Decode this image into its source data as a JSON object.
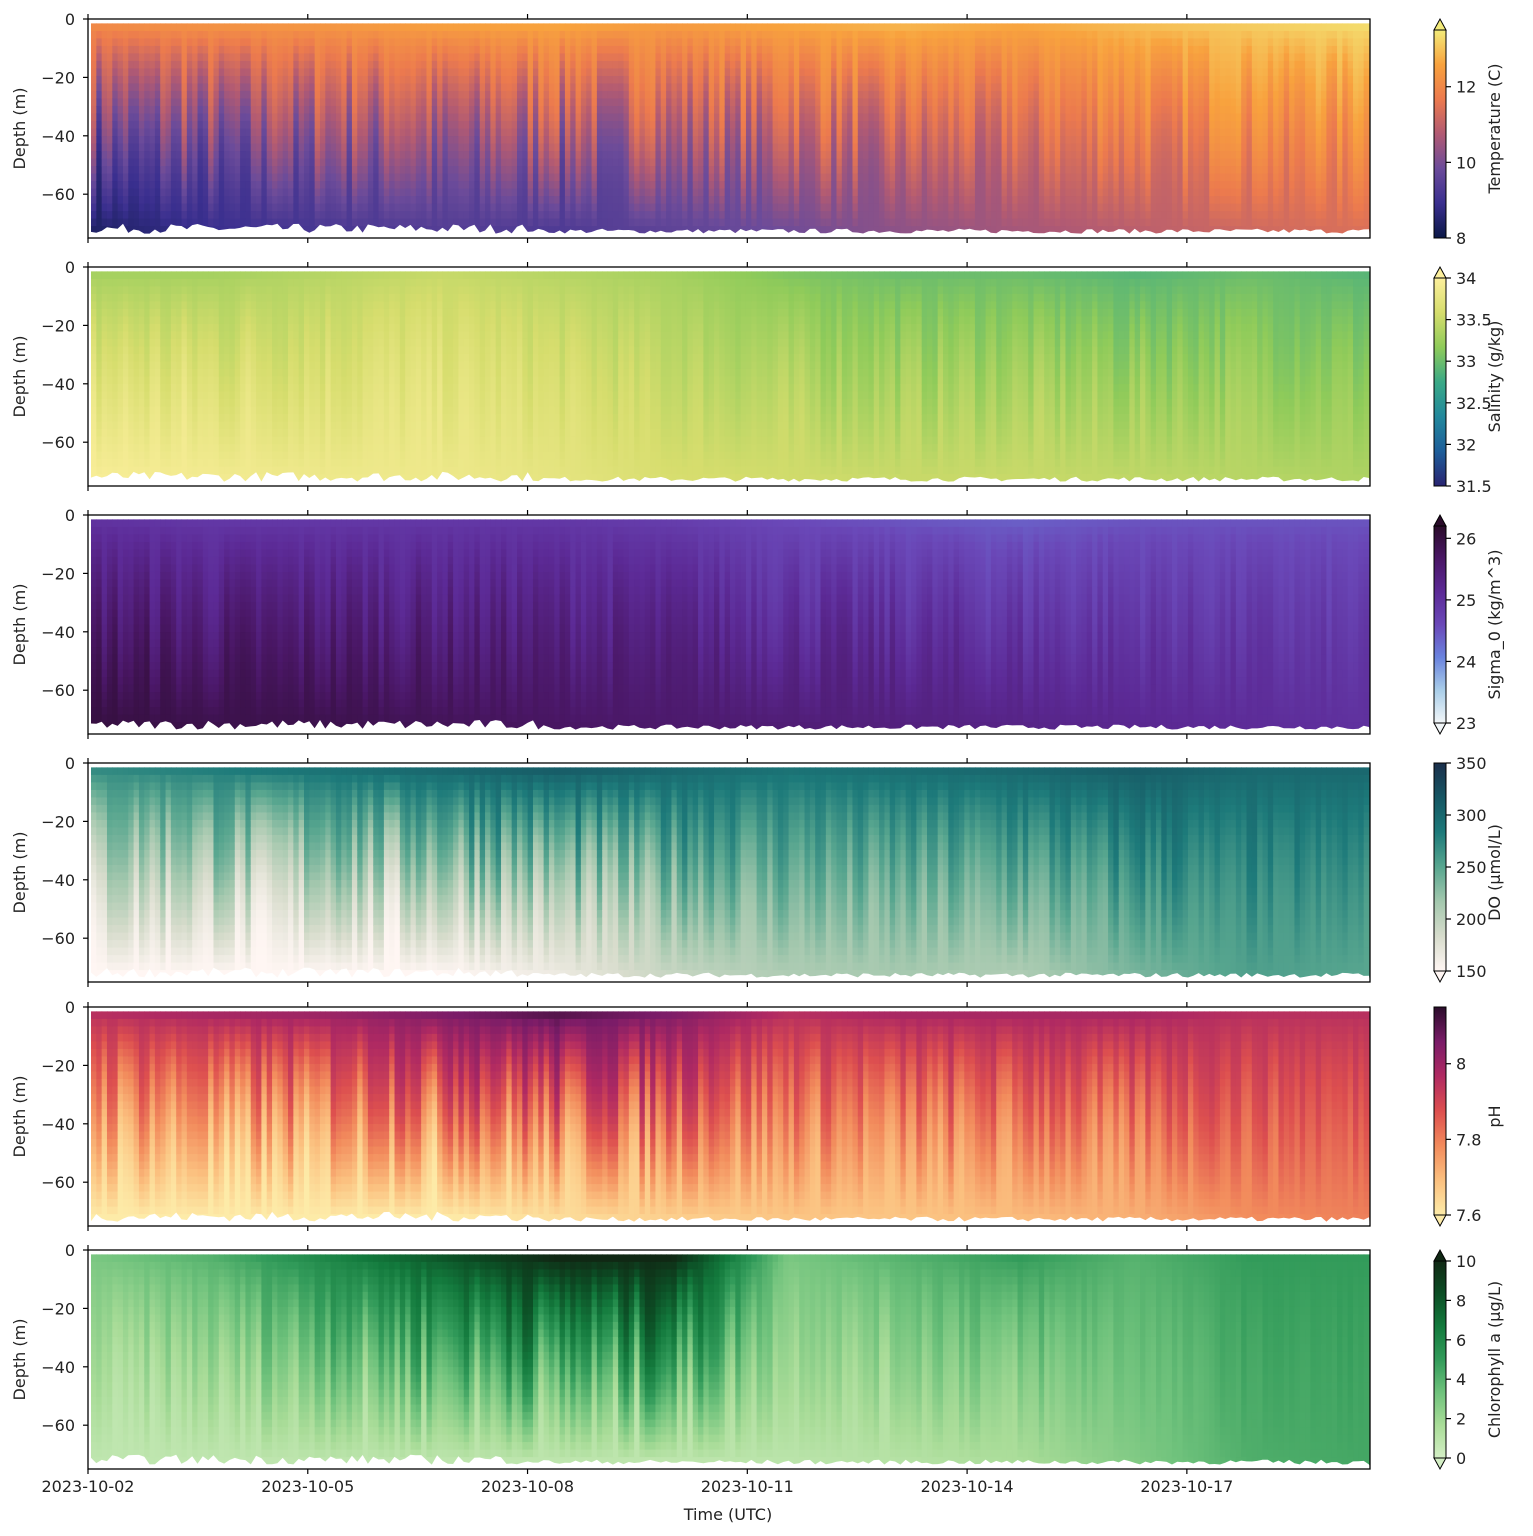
{
  "chart_data": [
    {
      "type": "heatmap",
      "variable": "Temperature",
      "ylabel": "Depth (m)",
      "xlabel": "",
      "colorbar_label": "Temperature (C)",
      "colorbar_range": [
        8,
        13.5
      ],
      "colorbar_ticks": [
        8,
        10,
        12
      ],
      "colorbar_extend": "max",
      "colormap": [
        "#0b1846",
        "#3a2f8f",
        "#6b4b9a",
        "#b15a73",
        "#ec7a4e",
        "#f8a23e",
        "#f3eb7a"
      ],
      "ylim": [
        -75,
        0
      ],
      "yticks": [
        0,
        -20,
        -40,
        -60
      ],
      "trend": "upper layer warmer (~12–13.5 C), deep water ~8.5–10 C; warming through the period",
      "surface_series": [
        12.0,
        12.2,
        12.3,
        12.5,
        12.6,
        12.4,
        12.6,
        12.8,
        12.6,
        12.9,
        13.1,
        13.3
      ],
      "bottom_series": [
        8.4,
        8.9,
        9.2,
        9.4,
        9.3,
        9.6,
        9.9,
        10.3,
        10.6,
        10.9,
        11.2,
        11.4
      ]
    },
    {
      "type": "heatmap",
      "variable": "Salinity",
      "ylabel": "Depth (m)",
      "xlabel": "",
      "colorbar_label": "Salinity (g/kg)",
      "colorbar_range": [
        31.5,
        34.0
      ],
      "colorbar_ticks": [
        31.5,
        32.0,
        32.5,
        33.0,
        33.5,
        34.0
      ],
      "colorbar_extend": "max",
      "colormap": [
        "#292471",
        "#1e5e9a",
        "#22889c",
        "#3aa986",
        "#8fcb5a",
        "#d6dd6d",
        "#fcef9c"
      ],
      "ylim": [
        -75,
        0
      ],
      "yticks": [
        0,
        -20,
        -40,
        -60
      ],
      "trend": "fresher near surface (~33.0–33.3), saltier at depth (~33.8–34.0) early; decreasing over time",
      "surface_series": [
        33.3,
        33.3,
        33.4,
        33.5,
        33.4,
        33.3,
        33.1,
        33.0,
        33.0,
        32.9,
        33.0,
        32.9
      ],
      "bottom_series": [
        33.95,
        33.9,
        33.85,
        33.85,
        33.75,
        33.6,
        33.55,
        33.5,
        33.5,
        33.45,
        33.4,
        33.35
      ]
    },
    {
      "type": "heatmap",
      "variable": "Sigma_0",
      "ylabel": "Depth (m)",
      "xlabel": "",
      "colorbar_label": "Sigma_0 (kg/m^3)",
      "colorbar_range": [
        23,
        26.2
      ],
      "colorbar_ticks": [
        23,
        24,
        25,
        26
      ],
      "colorbar_extend": "both",
      "colormap": [
        "#f2f6f8",
        "#a9cde8",
        "#6a83de",
        "#6a48b8",
        "#5c2a96",
        "#4a1766",
        "#2a0b2a"
      ],
      "ylim": [
        -75,
        0
      ],
      "yticks": [
        0,
        -20,
        -40,
        -60
      ],
      "trend": "denser at depth (~26), lighter near surface (~24.6); lightening over time",
      "surface_series": [
        25.0,
        24.9,
        24.9,
        24.9,
        24.9,
        24.8,
        24.6,
        24.5,
        24.4,
        24.5,
        24.5,
        24.5
      ],
      "bottom_series": [
        26.0,
        25.9,
        25.9,
        25.8,
        25.7,
        25.6,
        25.5,
        25.4,
        25.3,
        25.2,
        25.1,
        25.0
      ]
    },
    {
      "type": "heatmap",
      "variable": "DO",
      "ylabel": "Depth (m)",
      "xlabel": "",
      "colorbar_label": "DO (μmol/L)",
      "colorbar_range": [
        150,
        350
      ],
      "colorbar_ticks": [
        150,
        200,
        250,
        300,
        350
      ],
      "colorbar_extend": "min",
      "colormap": [
        "#fff6f3",
        "#d7dccc",
        "#a4c8ae",
        "#58a68f",
        "#1d7a7a",
        "#165663",
        "#1b2f4b"
      ],
      "ylim": [
        -75,
        0
      ],
      "yticks": [
        0,
        -20,
        -40,
        -60
      ],
      "trend": "high oxygen near surface (~280–330), low at depth (<160) early; deep DO increases after 2023-10-08",
      "surface_series": [
        270,
        280,
        290,
        300,
        310,
        300,
        290,
        295,
        300,
        310,
        300,
        300
      ],
      "bottom_series": [
        150,
        150,
        150,
        150,
        165,
        195,
        210,
        215,
        210,
        235,
        255,
        250
      ]
    },
    {
      "type": "heatmap",
      "variable": "pH",
      "ylabel": "Depth (m)",
      "xlabel": "",
      "colorbar_label": "pH",
      "colorbar_range": [
        7.6,
        8.15
      ],
      "colorbar_ticks": [
        7.6,
        7.8,
        8.0
      ],
      "colorbar_extend": "min",
      "colormap": [
        "#fdeba8",
        "#fbc07f",
        "#f28b5c",
        "#dd4f4f",
        "#b02a62",
        "#7a1c68",
        "#2a0c2a"
      ],
      "ylim": [
        -75,
        0
      ],
      "yticks": [
        0,
        -20,
        -40,
        -60
      ],
      "trend": "higher pH near surface (~7.95–8.1), low at depth (~7.6) early; deep pH rises later",
      "surface_series": [
        7.95,
        7.98,
        8.0,
        8.05,
        8.1,
        8.05,
        7.95,
        7.98,
        7.98,
        7.98,
        7.95,
        7.95
      ],
      "bottom_series": [
        7.6,
        7.6,
        7.6,
        7.6,
        7.63,
        7.66,
        7.68,
        7.68,
        7.7,
        7.72,
        7.78,
        7.8
      ]
    },
    {
      "type": "heatmap",
      "variable": "Chlorophyll a",
      "ylabel": "Depth (m)",
      "xlabel": "Time (UTC)",
      "colorbar_label": "Chlorophyll a (μg/L)",
      "colorbar_range": [
        0,
        10
      ],
      "colorbar_ticks": [
        0,
        2,
        4,
        6,
        8,
        10
      ],
      "colorbar_extend": "both",
      "colormap": [
        "#d4efc5",
        "#a9dc98",
        "#6fc27c",
        "#329b5a",
        "#137a3d",
        "#0c4e25",
        "#102814"
      ],
      "ylim": [
        -75,
        0
      ],
      "yticks": [
        0,
        -20,
        -40,
        -60
      ],
      "trend": "surface bloom (>8 μg/L) 2023-10-05 to 2023-10-08; elevated chlorophyll throughout water column after 2023-10-15",
      "surface_series": [
        3,
        4,
        6,
        8,
        10,
        10,
        3,
        4,
        5,
        4,
        5,
        5
      ],
      "bottom_series": [
        0.8,
        0.8,
        0.9,
        0.9,
        0.9,
        0.9,
        1.0,
        1.2,
        1.6,
        2.8,
        4.2,
        4.5
      ]
    }
  ],
  "time_axis": {
    "start": "2023-10-02",
    "end": "2023-10-19 12:00",
    "tick_labels": [
      "2023-10-02",
      "2023-10-05",
      "2023-10-08",
      "2023-10-11",
      "2023-10-14",
      "2023-10-17"
    ],
    "label": "Time (UTC)"
  }
}
